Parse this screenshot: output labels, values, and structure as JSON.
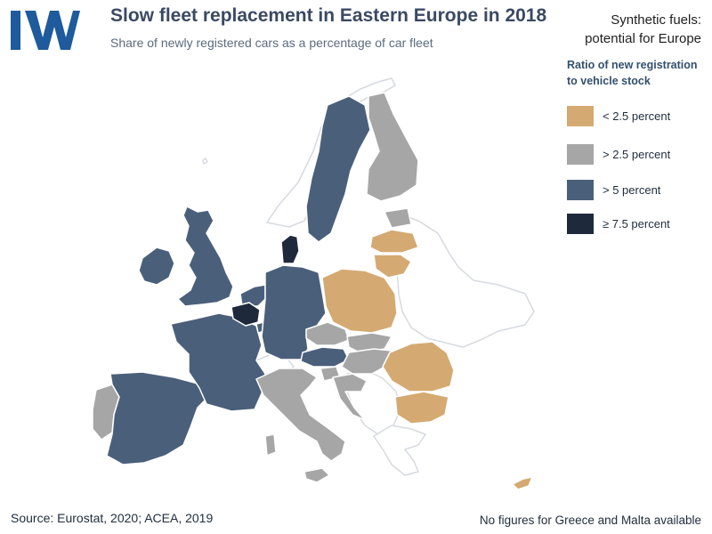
{
  "header": {
    "title": "Slow fleet replacement in Eastern Europe in 2018",
    "subtitle": "Share of newly registered cars as a percentage of car fleet",
    "corner_line1": "Synthetic fuels:",
    "corner_line2": "potential for Europe"
  },
  "logo": {
    "text": "IW",
    "color": "#1e5a9c"
  },
  "legend": {
    "title_line1": "Ratio of new registration",
    "title_line2": "to vehicle stock",
    "items": [
      {
        "label": "< 2.5 percent",
        "color": "#d4aa72"
      },
      {
        "label": "> 2.5 percent",
        "color": "#a6a6a6"
      },
      {
        "label": "> 5 percent",
        "color": "#4a5f7a"
      },
      {
        "label": "≥ 7.5 percent",
        "color": "#1e2a3c"
      }
    ]
  },
  "map": {
    "colors": {
      "lt25": "#d4aa72",
      "gt25": "#a6a6a6",
      "gt5": "#4a5f7a",
      "ge75": "#1e2a3c",
      "no_data": "#ffffff"
    },
    "countries": {
      "ireland": "gt5",
      "united_kingdom": "gt5",
      "portugal": "gt25",
      "spain": "gt5",
      "france": "gt5",
      "belgium": "ge75",
      "netherlands": "gt5",
      "luxembourg": "gt5",
      "germany": "gt5",
      "denmark": "ge75",
      "sweden": "gt5",
      "finland": "gt25",
      "estonia": "gt25",
      "latvia": "lt25",
      "lithuania": "lt25",
      "poland": "lt25",
      "czechia": "gt25",
      "slovakia": "gt25",
      "austria": "gt5",
      "hungary": "gt25",
      "slovenia": "gt25",
      "croatia": "gt25",
      "italy": "gt25",
      "romania": "lt25",
      "bulgaria": "lt25",
      "cyprus": "lt25",
      "greece": "no_data",
      "malta": "no_data"
    }
  },
  "footer": {
    "source": "Source: Eurostat, 2020; ACEA, 2019",
    "note": "No figures for Greece and Malta available"
  }
}
